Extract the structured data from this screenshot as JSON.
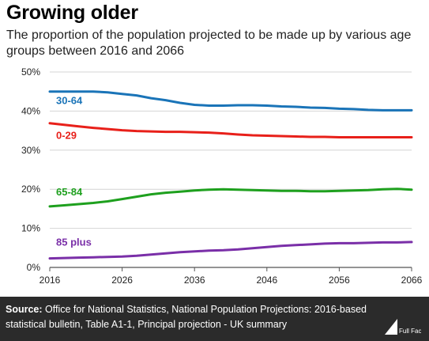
{
  "title": "Growing older",
  "subtitle": "The proportion of the population projected to be made up by various age groups between 2016 and 2066",
  "footer": {
    "source_label": "Source:",
    "source_text": "Office for National Statistics, National Population Projections: 2016-based statistical bulletin, Table A1-1, Principal projection - UK summary"
  },
  "logo_text": "Full Fact",
  "colors": {
    "series_30_64": "#1a74b8",
    "series_0_29": "#e8201a",
    "series_65_84": "#1ea01e",
    "series_85_plus": "#7a2fa8",
    "grid": "#d4d4d4",
    "footer_bg": "#2b2b2b"
  },
  "chart_data": {
    "type": "line",
    "x": [
      2016,
      2018,
      2020,
      2022,
      2024,
      2026,
      2028,
      2030,
      2032,
      2034,
      2036,
      2038,
      2040,
      2042,
      2044,
      2046,
      2048,
      2050,
      2052,
      2054,
      2056,
      2058,
      2060,
      2062,
      2064,
      2066
    ],
    "xlim": [
      2016,
      2066
    ],
    "xticks": [
      "2016",
      "2026",
      "2036",
      "2046",
      "2056",
      "2066"
    ],
    "xtick_values": [
      2016,
      2026,
      2036,
      2046,
      2056,
      2066
    ],
    "ylim": [
      0,
      50
    ],
    "yticks": [
      "0%",
      "10%",
      "20%",
      "30%",
      "40%",
      "50%"
    ],
    "ytick_values": [
      0,
      10,
      20,
      30,
      40,
      50
    ],
    "grid": true,
    "series": [
      {
        "name": "30-64",
        "color_key": "series_30_64",
        "values": [
          45.0,
          45.0,
          45.0,
          45.0,
          44.8,
          44.4,
          44.0,
          43.3,
          42.8,
          42.1,
          41.6,
          41.4,
          41.4,
          41.5,
          41.5,
          41.4,
          41.2,
          41.1,
          40.9,
          40.8,
          40.6,
          40.5,
          40.3,
          40.2,
          40.2,
          40.2
        ]
      },
      {
        "name": "0-29",
        "color_key": "series_0_29",
        "values": [
          36.9,
          36.5,
          36.1,
          35.7,
          35.4,
          35.1,
          34.9,
          34.8,
          34.7,
          34.7,
          34.6,
          34.5,
          34.3,
          34.0,
          33.8,
          33.7,
          33.6,
          33.5,
          33.4,
          33.4,
          33.3,
          33.3,
          33.3,
          33.3,
          33.3,
          33.3
        ]
      },
      {
        "name": "65-84",
        "color_key": "series_65_84",
        "values": [
          15.6,
          15.9,
          16.2,
          16.5,
          16.9,
          17.5,
          18.1,
          18.7,
          19.1,
          19.4,
          19.7,
          19.9,
          20.0,
          19.9,
          19.8,
          19.7,
          19.6,
          19.6,
          19.5,
          19.5,
          19.6,
          19.7,
          19.8,
          20.0,
          20.1,
          19.9
        ]
      },
      {
        "name": "85 plus",
        "color_key": "series_85_plus",
        "values": [
          2.3,
          2.4,
          2.5,
          2.6,
          2.7,
          2.8,
          3.0,
          3.3,
          3.6,
          3.9,
          4.1,
          4.3,
          4.4,
          4.6,
          4.9,
          5.2,
          5.5,
          5.7,
          5.9,
          6.1,
          6.2,
          6.2,
          6.3,
          6.4,
          6.4,
          6.5
        ]
      }
    ]
  }
}
